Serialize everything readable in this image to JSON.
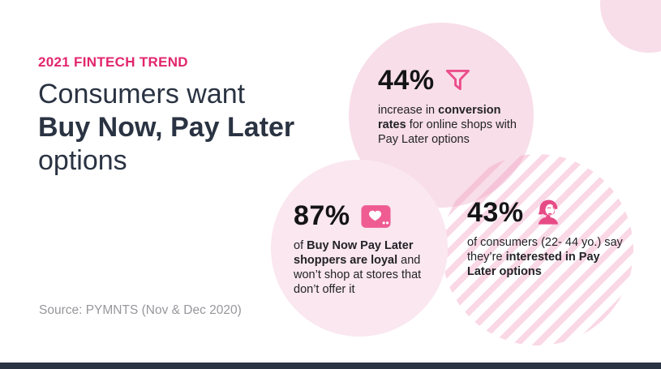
{
  "colors": {
    "accent": "#e2256d",
    "icon-pink": "#ec4d8b",
    "card-pink": "#ee5c92",
    "woman-pink": "#e64b86",
    "circle1": "#f8dee9",
    "circle2": "#fae7f0",
    "stripe": "rgba(242,153,188,0.38)",
    "navy": "#2a3342",
    "text": "#232327",
    "gray": "#97969b",
    "bar": "#2a3342"
  },
  "header": {
    "label": "2021 FINTECH TREND",
    "title_lines": [
      {
        "text": "Consumers want",
        "bold": false
      },
      {
        "text": "Buy Now, Pay Later",
        "bold": true
      },
      {
        "text": "options",
        "bold": false
      }
    ]
  },
  "stats": [
    {
      "value": "44%",
      "icon": "funnel-icon",
      "desc_segments": [
        {
          "text": "increase in ",
          "bold": false
        },
        {
          "text": "conversion rates",
          "bold": true
        },
        {
          "text": " for online shops with Pay Later options",
          "bold": false
        }
      ]
    },
    {
      "value": "87%",
      "icon": "heart-message-icon",
      "desc_segments": [
        {
          "text": "of ",
          "bold": false
        },
        {
          "text": "Buy Now Pay Later shoppers are loyal",
          "bold": true
        },
        {
          "text": " and won’t shop at stores that don’t offer it",
          "bold": false
        }
      ]
    },
    {
      "value": "43%",
      "icon": "woman-icon",
      "desc_segments": [
        {
          "text": "of consumers (22- 44 yo.) say they’re ",
          "bold": false
        },
        {
          "text": "interested in Pay Later options",
          "bold": true
        }
      ]
    }
  ],
  "source": {
    "text": "Source: PYMNTS (Nov & Dec 2020)"
  },
  "chart_data": {
    "type": "table",
    "title": "Consumers want Buy Now, Pay Later options",
    "subtitle": "2021 FINTECH TREND",
    "categories": [
      "increase in conversion rates for online shops with Pay Later options",
      "of Buy Now Pay Later shoppers are loyal and won’t shop at stores that don’t offer it",
      "of consumers (22- 44 yo.) say they’re interested in Pay Later options"
    ],
    "series": [
      {
        "name": "percentage",
        "values": [
          44,
          87,
          43
        ]
      }
    ],
    "source": "Source: PYMNTS (Nov & Dec 2020)"
  }
}
